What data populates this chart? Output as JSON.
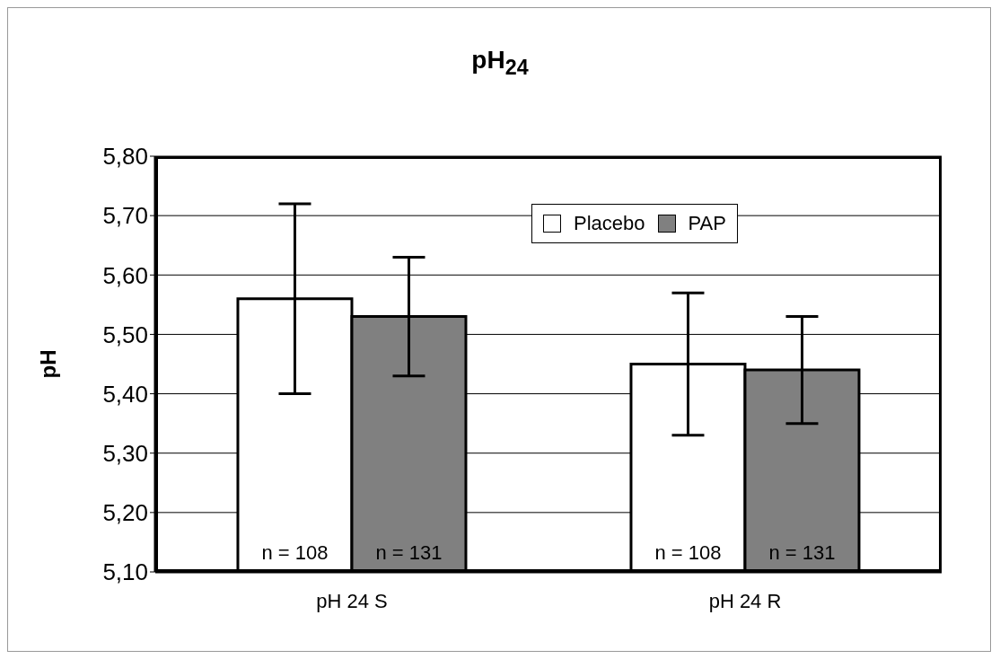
{
  "chart_data": {
    "type": "bar",
    "title": "pH$_{24}$",
    "ylabel": "pH",
    "categories": [
      "pH 24 S",
      "pH 24 R"
    ],
    "series": [
      {
        "name": "Placebo",
        "color": "#ffffff",
        "values": [
          5.56,
          5.45
        ],
        "errors": [
          0.16,
          0.12
        ]
      },
      {
        "name": "PAP",
        "color": "#808080",
        "values": [
          5.53,
          5.44
        ],
        "errors": [
          0.1,
          0.09
        ]
      }
    ],
    "annotations": [
      "n = 108",
      "n = 131",
      "n = 108",
      "n = 131"
    ],
    "ylim": [
      5.1,
      5.8
    ],
    "yticks": [
      {
        "value": 5.1,
        "label": "5,10"
      },
      {
        "value": 5.2,
        "label": "5,20"
      },
      {
        "value": 5.3,
        "label": "5,30"
      },
      {
        "value": 5.4,
        "label": "5,40"
      },
      {
        "value": 5.5,
        "label": "5,50"
      },
      {
        "value": 5.6,
        "label": "5,60"
      },
      {
        "value": 5.7,
        "label": "5,70"
      },
      {
        "value": 5.8,
        "label": "5,80"
      }
    ],
    "grid": "y",
    "legend": "top"
  }
}
